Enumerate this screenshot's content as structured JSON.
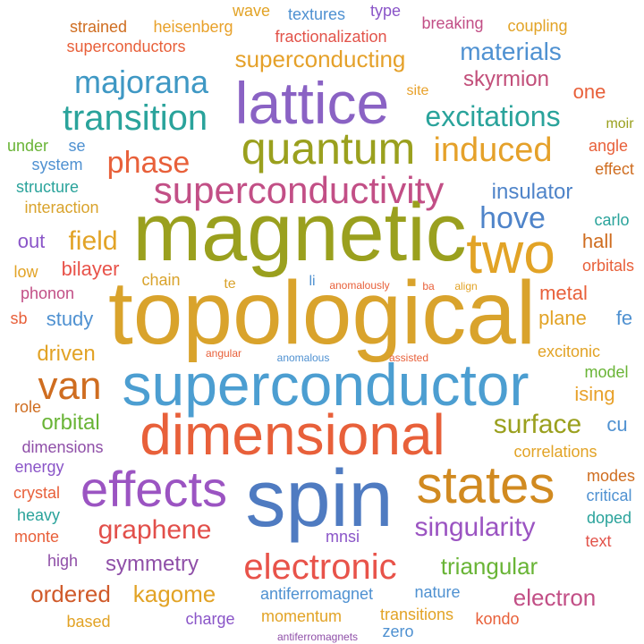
{
  "cloud": {
    "colors": {
      "olive": "#9aa01e",
      "purple": "#8a55c8",
      "teal": "#2aa39b",
      "orange": "#e2a326",
      "blue": "#4a84c4",
      "red": "#e8603a",
      "pink": "#c54c92",
      "green": "#69b436",
      "brown": "#cf6d20",
      "gold": "#d7a827",
      "darkpurple": "#8f4fa8",
      "sky": "#4f91d1"
    },
    "words": [
      {
        "text": "topological",
        "weight": 100,
        "color": "#d9a32c"
      },
      {
        "text": "magnetic",
        "weight": 92,
        "color": "#9aa01e"
      },
      {
        "text": "spin",
        "weight": 90,
        "color": "#4f7bc1"
      },
      {
        "text": "superconductor",
        "weight": 80,
        "color": "#4c9ed1"
      },
      {
        "text": "dimensional",
        "weight": 75,
        "color": "#e8603a"
      },
      {
        "text": "lattice",
        "weight": 70,
        "color": "#8a62c4"
      },
      {
        "text": "states",
        "weight": 68,
        "color": "#d18a20"
      },
      {
        "text": "effects",
        "weight": 62,
        "color": "#9b54c2"
      },
      {
        "text": "quantum",
        "weight": 62,
        "color": "#9aa01e"
      },
      {
        "text": "two",
        "weight": 60,
        "color": "#e2a326"
      },
      {
        "text": "superconductivity",
        "weight": 56,
        "color": "#c24f86"
      },
      {
        "text": "electronic",
        "weight": 52,
        "color": "#e8534a"
      },
      {
        "text": "transition",
        "weight": 50,
        "color": "#2aa39b"
      },
      {
        "text": "induced",
        "weight": 50,
        "color": "#e5a12a"
      },
      {
        "text": "van",
        "weight": 48,
        "color": "#cf6d20"
      },
      {
        "text": "majorana",
        "weight": 44,
        "color": "#3f98c4"
      },
      {
        "text": "excitations",
        "weight": 42,
        "color": "#2aa39b"
      },
      {
        "text": "phase",
        "weight": 40,
        "color": "#e8603a"
      },
      {
        "text": "hove",
        "weight": 40,
        "color": "#4f84c9"
      },
      {
        "text": "graphene",
        "weight": 38,
        "color": "#e24f4a"
      },
      {
        "text": "singularity",
        "weight": 38,
        "color": "#9b54c2"
      },
      {
        "text": "surface",
        "weight": 36,
        "color": "#9aa01e"
      },
      {
        "text": "superconducting",
        "weight": 34,
        "color": "#e5a12a"
      },
      {
        "text": "materials",
        "weight": 34,
        "color": "#4f91d1"
      },
      {
        "text": "field",
        "weight": 34,
        "color": "#e2a326"
      },
      {
        "text": "kagome",
        "weight": 32,
        "color": "#e2a326"
      },
      {
        "text": "ordered",
        "weight": 32,
        "color": "#d05a2a"
      },
      {
        "text": "electron",
        "weight": 30,
        "color": "#c24f86"
      },
      {
        "text": "triangular",
        "weight": 30,
        "color": "#69b436"
      },
      {
        "text": "symmetry",
        "weight": 30,
        "color": "#8f4fa8"
      },
      {
        "text": "skyrmion",
        "weight": 30,
        "color": "#c24f7a"
      },
      {
        "text": "insulator",
        "weight": 28,
        "color": "#4f84c9"
      },
      {
        "text": "driven",
        "weight": 28,
        "color": "#e2a326"
      },
      {
        "text": "orbital",
        "weight": 28,
        "color": "#69b436"
      },
      {
        "text": "metal",
        "weight": 26,
        "color": "#e8603a"
      },
      {
        "text": "plane",
        "weight": 26,
        "color": "#e2a326"
      },
      {
        "text": "bilayer",
        "weight": 26,
        "color": "#e8534a"
      },
      {
        "text": "study",
        "weight": 26,
        "color": "#4f91d1"
      },
      {
        "text": "ising",
        "weight": 26,
        "color": "#e8a12a"
      },
      {
        "text": "one",
        "weight": 26,
        "color": "#e8603a"
      },
      {
        "text": "hall",
        "weight": 24,
        "color": "#cf6d20"
      },
      {
        "text": "fe",
        "weight": 24,
        "color": "#4f91d1"
      },
      {
        "text": "cu",
        "weight": 24,
        "color": "#4f91d1"
      },
      {
        "text": "out",
        "weight": 24,
        "color": "#8a55c8"
      },
      {
        "text": "heisenberg",
        "weight": 20,
        "color": "#e8a12a"
      },
      {
        "text": "strained",
        "weight": 20,
        "color": "#cf6d20"
      },
      {
        "text": "wave",
        "weight": 20,
        "color": "#e2a326"
      },
      {
        "text": "textures",
        "weight": 20,
        "color": "#4f91d1"
      },
      {
        "text": "type",
        "weight": 20,
        "color": "#8a55c8"
      },
      {
        "text": "breaking",
        "weight": 20,
        "color": "#c24f86"
      },
      {
        "text": "coupling",
        "weight": 20,
        "color": "#e2a326"
      },
      {
        "text": "superconductors",
        "weight": 20,
        "color": "#e8603a"
      },
      {
        "text": "fractionalization",
        "weight": 20,
        "color": "#e2534a"
      },
      {
        "text": "site",
        "weight": 16,
        "color": "#e8a12a"
      },
      {
        "text": "moir",
        "weight": 16,
        "color": "#9aa01e"
      },
      {
        "text": "angle",
        "weight": 18,
        "color": "#e8603a"
      },
      {
        "text": "effect",
        "weight": 18,
        "color": "#cf6d20"
      },
      {
        "text": "text",
        "weight": 18,
        "color": "#e2534a"
      },
      {
        "text": "under",
        "weight": 18,
        "color": "#69b436"
      },
      {
        "text": "se",
        "weight": 18,
        "color": "#4f91d1"
      },
      {
        "text": "system",
        "weight": 18,
        "color": "#4f91d1"
      },
      {
        "text": "structure",
        "weight": 18,
        "color": "#2aa39b"
      },
      {
        "text": "interaction",
        "weight": 18,
        "color": "#d9a32c"
      },
      {
        "text": "carlo",
        "weight": 18,
        "color": "#2aa39b"
      },
      {
        "text": "low",
        "weight": 18,
        "color": "#e2a326"
      },
      {
        "text": "orbitals",
        "weight": 18,
        "color": "#e8603a"
      },
      {
        "text": "phonon",
        "weight": 18,
        "color": "#c24f86"
      },
      {
        "text": "sb",
        "weight": 18,
        "color": "#e8603a"
      },
      {
        "text": "chain",
        "weight": 18,
        "color": "#d9a32c"
      },
      {
        "text": "te",
        "weight": 16,
        "color": "#d9a32c"
      },
      {
        "text": "li",
        "weight": 16,
        "color": "#4f91d1"
      },
      {
        "text": "anomalously",
        "weight": 12,
        "color": "#e8603a"
      },
      {
        "text": "ba",
        "weight": 12,
        "color": "#e8603a"
      },
      {
        "text": "align",
        "weight": 12,
        "color": "#e2a326"
      },
      {
        "text": "angular",
        "weight": 12,
        "color": "#e8603a"
      },
      {
        "text": "anomalous",
        "weight": 12,
        "color": "#4f91d1"
      },
      {
        "text": "assisted",
        "weight": 12,
        "color": "#e8603a"
      },
      {
        "text": "excitonic",
        "weight": 18,
        "color": "#e2a326"
      },
      {
        "text": "model",
        "weight": 18,
        "color": "#69b436"
      },
      {
        "text": "role",
        "weight": 18,
        "color": "#cf6d20"
      },
      {
        "text": "dimensions",
        "weight": 18,
        "color": "#8f4fa8"
      },
      {
        "text": "correlations",
        "weight": 18,
        "color": "#e2a326"
      },
      {
        "text": "energy",
        "weight": 18,
        "color": "#8a55c8"
      },
      {
        "text": "modes",
        "weight": 18,
        "color": "#cf6d20"
      },
      {
        "text": "critical",
        "weight": 18,
        "color": "#4f91d1"
      },
      {
        "text": "crystal",
        "weight": 18,
        "color": "#e8603a"
      },
      {
        "text": "heavy",
        "weight": 18,
        "color": "#2aa39b"
      },
      {
        "text": "doped",
        "weight": 18,
        "color": "#2aa39b"
      },
      {
        "text": "monte",
        "weight": 18,
        "color": "#e8603a"
      },
      {
        "text": "mnsi",
        "weight": 18,
        "color": "#8a55c8"
      },
      {
        "text": "high",
        "weight": 18,
        "color": "#8f4fa8"
      },
      {
        "text": "antiferromagnet",
        "weight": 18,
        "color": "#4f91d1"
      },
      {
        "text": "nature",
        "weight": 18,
        "color": "#4f91d1"
      },
      {
        "text": "based",
        "weight": 18,
        "color": "#e2a326"
      },
      {
        "text": "charge",
        "weight": 18,
        "color": "#8a55c8"
      },
      {
        "text": "momentum",
        "weight": 18,
        "color": "#e2a326"
      },
      {
        "text": "transitions",
        "weight": 18,
        "color": "#e2a326"
      },
      {
        "text": "kondo",
        "weight": 18,
        "color": "#e8603a"
      },
      {
        "text": "zero",
        "weight": 18,
        "color": "#4f91d1"
      },
      {
        "text": "antiferromagnets",
        "weight": 12,
        "color": "#8f4fa8"
      }
    ]
  }
}
